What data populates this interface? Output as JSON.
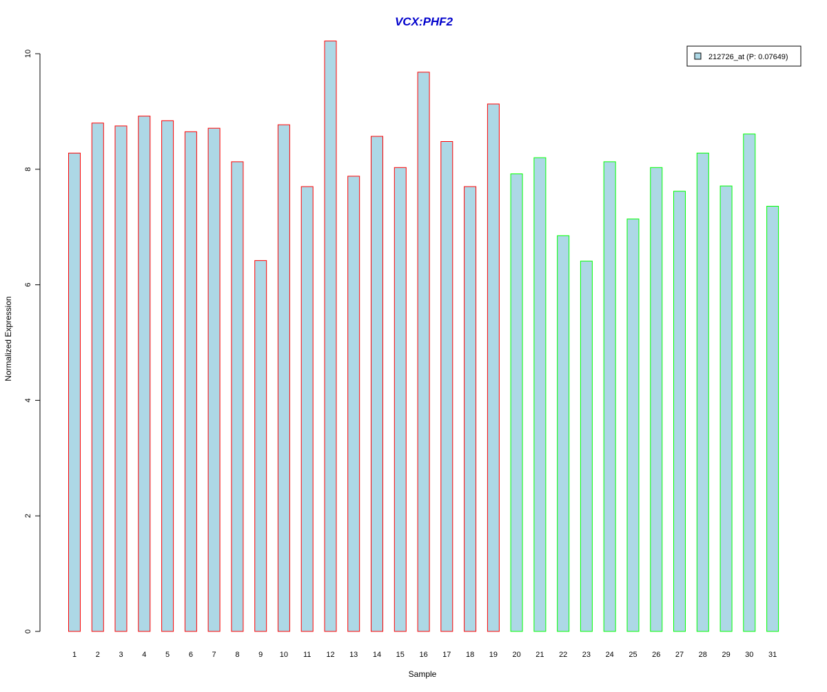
{
  "chart_data": {
    "type": "bar",
    "title": "VCX:PHF2",
    "xlabel": "Sample",
    "ylabel": "Normalized Expression",
    "ylim": [
      0,
      10.3
    ],
    "y_ticks": [
      0,
      2,
      4,
      6,
      8,
      10
    ],
    "grid": false,
    "legend_position": "top-right",
    "categories": [
      "1",
      "2",
      "3",
      "4",
      "5",
      "6",
      "7",
      "8",
      "9",
      "10",
      "11",
      "12",
      "13",
      "14",
      "15",
      "16",
      "17",
      "18",
      "19",
      "20",
      "21",
      "22",
      "23",
      "24",
      "25",
      "26",
      "27",
      "28",
      "29",
      "30",
      "31"
    ],
    "series": [
      {
        "name": "212726_at (P: 0.07649)",
        "values": [
          8.28,
          8.8,
          8.75,
          8.92,
          8.84,
          8.65,
          8.71,
          8.13,
          6.42,
          8.77,
          7.7,
          10.22,
          7.88,
          8.57,
          8.03,
          9.68,
          8.48,
          7.7,
          9.13,
          7.92,
          8.2,
          6.85,
          6.41,
          8.13,
          7.14,
          8.03,
          7.62,
          8.28,
          7.71,
          8.61,
          7.36
        ],
        "group_count_first": 19
      }
    ],
    "colors": {
      "bar_fill": "#add8e6",
      "group1_border": "#ff0000",
      "group2_border": "#00ff00",
      "title": "#0000cc",
      "axis": "#000000"
    }
  }
}
